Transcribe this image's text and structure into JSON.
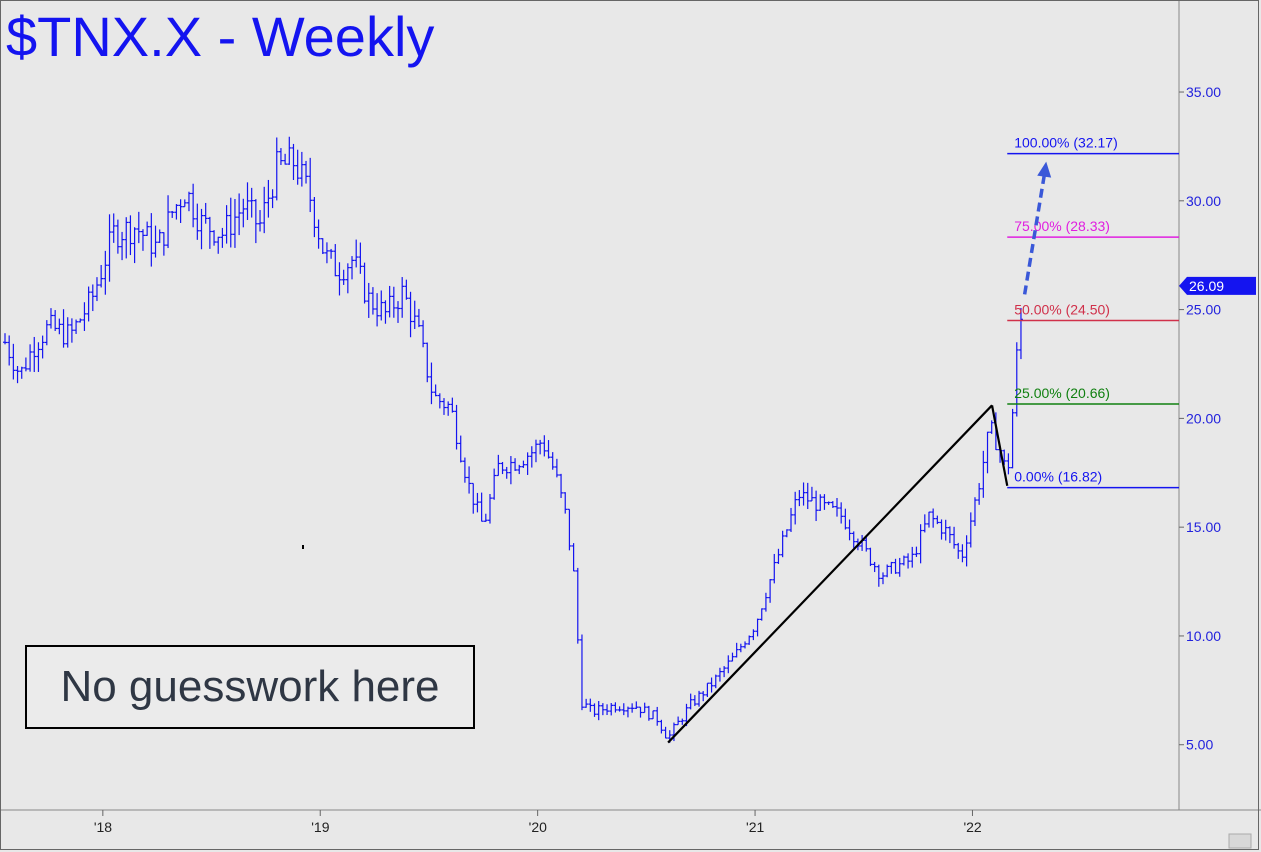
{
  "title": "$TNX.X - Weekly",
  "note": "No guesswork here",
  "colors": {
    "background": "#e8e8e8",
    "bars": "#1414f0",
    "title": "#1414f0",
    "fib_100": "#1414f0",
    "fib_75": "#e020e0",
    "fib_50": "#d0304a",
    "fib_25": "#108010",
    "fib_0": "#1414f0",
    "trendline": "#000000",
    "price_marker": "#1414f0"
  },
  "chart_data": {
    "type": "ohlc",
    "x_ticks": [
      "'18",
      "'19",
      "'20",
      "'21",
      "'22"
    ],
    "x_range": [
      2017.55,
      2022.95
    ],
    "y_ticks": [
      "5.00",
      "10.00",
      "15.00",
      "20.00",
      "25.00",
      "30.00",
      "35.00"
    ],
    "ylim": [
      2.0,
      39.0
    ],
    "last_price": "26.09",
    "fib_levels": [
      {
        "label": "100.00% (32.17)",
        "value": 32.17,
        "color_key": "fib_100"
      },
      {
        "label": "75.00% (28.33)",
        "value": 28.33,
        "color_key": "fib_75"
      },
      {
        "label": "50.00% (24.50)",
        "value": 24.5,
        "color_key": "fib_50"
      },
      {
        "label": "25.00% (20.66)",
        "value": 20.66,
        "color_key": "fib_25"
      },
      {
        "label": "0.00% (16.82)",
        "value": 16.82,
        "color_key": "fib_0"
      }
    ],
    "fib_start": 2022.16,
    "trendlines": [
      {
        "x1": 2020.6,
        "y1": 5.1,
        "x2": 2022.09,
        "y2": 20.6
      },
      {
        "x1": 2022.09,
        "y1": 20.6,
        "x2": 2022.16,
        "y2": 16.9
      }
    ],
    "projection": {
      "x1": 2022.24,
      "y1": 25.7,
      "x2": 2022.33,
      "y2": 32.17
    },
    "price_anchors": [
      [
        2017.55,
        23.5
      ],
      [
        2017.62,
        22.0
      ],
      [
        2017.68,
        23.3
      ],
      [
        2017.75,
        24.2
      ],
      [
        2017.85,
        23.8
      ],
      [
        2017.95,
        25.5
      ],
      [
        2018.05,
        28.5
      ],
      [
        2018.15,
        28.8
      ],
      [
        2018.25,
        27.8
      ],
      [
        2018.32,
        29.5
      ],
      [
        2018.38,
        30.5
      ],
      [
        2018.45,
        29.0
      ],
      [
        2018.55,
        28.5
      ],
      [
        2018.65,
        29.8
      ],
      [
        2018.72,
        28.8
      ],
      [
        2018.8,
        31.5
      ],
      [
        2018.88,
        31.8
      ],
      [
        2018.95,
        30.3
      ],
      [
        2019.02,
        27.5
      ],
      [
        2019.08,
        26.8
      ],
      [
        2019.15,
        27.3
      ],
      [
        2019.22,
        25.5
      ],
      [
        2019.3,
        24.8
      ],
      [
        2019.38,
        25.8
      ],
      [
        2019.45,
        24.0
      ],
      [
        2019.52,
        21.0
      ],
      [
        2019.6,
        20.5
      ],
      [
        2019.68,
        17.0
      ],
      [
        2019.75,
        15.0
      ],
      [
        2019.82,
        17.8
      ],
      [
        2019.9,
        18.0
      ],
      [
        2019.98,
        18.5
      ],
      [
        2020.02,
        19.0
      ],
      [
        2020.08,
        17.5
      ],
      [
        2020.13,
        15.5
      ],
      [
        2020.17,
        12.5
      ],
      [
        2020.2,
        7.0
      ],
      [
        2020.25,
        6.5
      ],
      [
        2020.35,
        6.8
      ],
      [
        2020.45,
        6.8
      ],
      [
        2020.55,
        6.2
      ],
      [
        2020.6,
        5.3
      ],
      [
        2020.7,
        6.8
      ],
      [
        2020.8,
        7.8
      ],
      [
        2020.9,
        9.0
      ],
      [
        2021.0,
        10.5
      ],
      [
        2021.1,
        13.5
      ],
      [
        2021.2,
        16.5
      ],
      [
        2021.3,
        16.0
      ],
      [
        2021.4,
        15.5
      ],
      [
        2021.5,
        14.0
      ],
      [
        2021.58,
        12.8
      ],
      [
        2021.65,
        13.2
      ],
      [
        2021.72,
        13.5
      ],
      [
        2021.8,
        15.5
      ],
      [
        2021.88,
        14.8
      ],
      [
        2021.95,
        13.6
      ],
      [
        2022.02,
        16.5
      ],
      [
        2022.08,
        19.5
      ],
      [
        2022.12,
        18.8
      ],
      [
        2022.16,
        17.3
      ],
      [
        2022.18,
        19.6
      ],
      [
        2022.2,
        22.5
      ],
      [
        2022.22,
        24.3
      ],
      [
        2022.24,
        25.6
      ]
    ]
  }
}
